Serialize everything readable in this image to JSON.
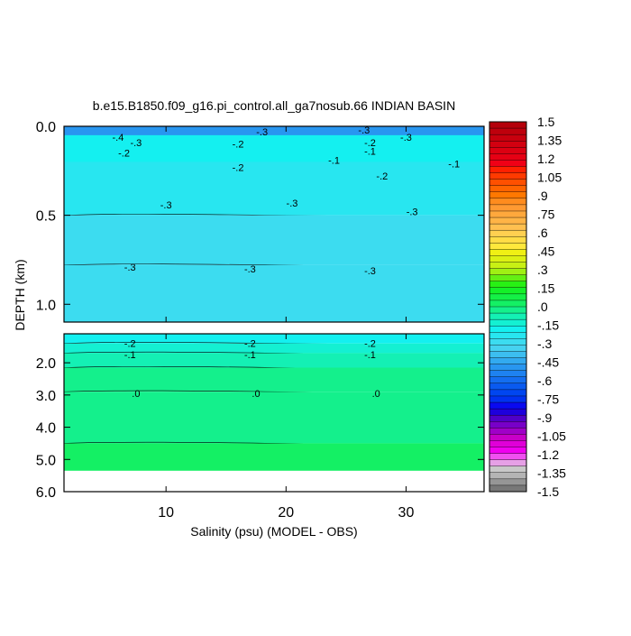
{
  "chart_data": {
    "type": "contour",
    "title": "b.e15.B1850.f09_g16.pi_control.all_ga7nosub.66 INDIAN BASIN",
    "xlabel": "Salinity (psu) (MODEL - OBS)",
    "ylabel": "DEPTH (km)",
    "x_ticks": [
      "10",
      "20",
      "30"
    ],
    "x_tick_values": [
      10,
      20,
      30
    ],
    "xlim": [
      1.5,
      36.5
    ],
    "top_panel": {
      "ylim": [
        0.0,
        1.1
      ],
      "y_ticks": [
        "0.0",
        "0.5",
        "1.0"
      ],
      "y_tick_values": [
        0.0,
        0.5,
        1.0
      ],
      "bands": [
        {
          "depth_top": 0.0,
          "depth_bottom": 0.1,
          "value": -0.5
        },
        {
          "depth_top": 0.05,
          "depth_bottom": 0.3,
          "value": -0.2
        },
        {
          "depth_top": 0.2,
          "depth_bottom": 0.5,
          "value": -0.25
        },
        {
          "depth_top": 0.5,
          "depth_bottom": 0.78,
          "value": -0.3
        },
        {
          "depth_top": 0.78,
          "depth_bottom": 1.1,
          "value": -0.3
        }
      ],
      "contour_labels": [
        {
          "x": 6,
          "depth": 0.06,
          "text": "-.4"
        },
        {
          "x": 7.5,
          "depth": 0.09,
          "text": "-.3"
        },
        {
          "x": 6.5,
          "depth": 0.15,
          "text": "-.2"
        },
        {
          "x": 16,
          "depth": 0.1,
          "text": "-.2"
        },
        {
          "x": 18,
          "depth": 0.03,
          "text": "-.3"
        },
        {
          "x": 16,
          "depth": 0.23,
          "text": "-.2"
        },
        {
          "x": 24,
          "depth": 0.19,
          "text": "-.1"
        },
        {
          "x": 26.5,
          "depth": 0.02,
          "text": "-.3"
        },
        {
          "x": 27,
          "depth": 0.09,
          "text": "-.2"
        },
        {
          "x": 27,
          "depth": 0.14,
          "text": "-.1"
        },
        {
          "x": 30,
          "depth": 0.06,
          "text": "-.3"
        },
        {
          "x": 28,
          "depth": 0.28,
          "text": "-.2"
        },
        {
          "x": 34,
          "depth": 0.21,
          "text": "-.1"
        },
        {
          "x": 10,
          "depth": 0.44,
          "text": "-.3"
        },
        {
          "x": 20.5,
          "depth": 0.43,
          "text": "-.3"
        },
        {
          "x": 30.5,
          "depth": 0.48,
          "text": "-.3"
        },
        {
          "x": 7,
          "depth": 0.79,
          "text": "-.3"
        },
        {
          "x": 17,
          "depth": 0.8,
          "text": "-.3"
        },
        {
          "x": 27,
          "depth": 0.81,
          "text": "-.3"
        }
      ]
    },
    "bottom_panel": {
      "ylim": [
        1.1,
        6.0
      ],
      "y_ticks": [
        "2.0",
        "3.0",
        "4.0",
        "5.0",
        "6.0"
      ],
      "y_tick_values": [
        2.0,
        3.0,
        4.0,
        5.0,
        6.0
      ],
      "data_bottom_depth": 5.35,
      "bands": [
        {
          "depth_top": 1.1,
          "depth_bottom": 1.4,
          "value": -0.2
        },
        {
          "depth_top": 1.4,
          "depth_bottom": 1.7,
          "value": -0.15
        },
        {
          "depth_top": 1.7,
          "depth_bottom": 2.15,
          "value": -0.1
        },
        {
          "depth_top": 2.15,
          "depth_bottom": 2.9,
          "value": -0.05
        },
        {
          "depth_top": 2.9,
          "depth_bottom": 4.5,
          "value": 0.0
        },
        {
          "depth_top": 4.5,
          "depth_bottom": 5.35,
          "value": 0.05
        }
      ],
      "contour_labels": [
        {
          "x": 7,
          "depth": 1.4,
          "text": "-.2"
        },
        {
          "x": 17,
          "depth": 1.4,
          "text": "-.2"
        },
        {
          "x": 27,
          "depth": 1.4,
          "text": "-.2"
        },
        {
          "x": 7,
          "depth": 1.75,
          "text": "-.1"
        },
        {
          "x": 17,
          "depth": 1.75,
          "text": "-.1"
        },
        {
          "x": 27,
          "depth": 1.75,
          "text": "-.1"
        },
        {
          "x": 7.5,
          "depth": 2.95,
          "text": ".0"
        },
        {
          "x": 17.5,
          "depth": 2.95,
          "text": ".0"
        },
        {
          "x": 27.5,
          "depth": 2.95,
          "text": ".0"
        }
      ]
    },
    "colorbar": {
      "range": [
        -1.5,
        1.5
      ],
      "labels": [
        "1.5",
        "1.35",
        "1.2",
        "1.05",
        ".9",
        ".75",
        ".6",
        ".45",
        ".3",
        ".15",
        ".0",
        "-.15",
        "-.3",
        "-.45",
        "-.6",
        "-.75",
        "-.9",
        "-1.05",
        "-1.2",
        "-1.35",
        "-1.5"
      ],
      "label_values": [
        1.5,
        1.35,
        1.2,
        1.05,
        0.9,
        0.75,
        0.6,
        0.45,
        0.3,
        0.15,
        0.0,
        -0.15,
        -0.3,
        -0.45,
        -0.6,
        -0.75,
        -0.9,
        -1.05,
        -1.2,
        -1.35,
        -1.5
      ],
      "colors_top_to_bottom": [
        "#b4000a",
        "#be000c",
        "#c8000e",
        "#d20010",
        "#dc0012",
        "#e60014",
        "#f00016",
        "#ff2000",
        "#ff3a00",
        "#ff5000",
        "#ff6400",
        "#ff7800",
        "#ff8c1e",
        "#ff9a32",
        "#ffa83c",
        "#ffb446",
        "#ffc050",
        "#ffd050",
        "#ffdc46",
        "#ffe83c",
        "#f0f014",
        "#dcf014",
        "#c8f014",
        "#a0f014",
        "#64f014",
        "#28f014",
        "#14f028",
        "#14f046",
        "#14f064",
        "#14f08c",
        "#14f0b4",
        "#14f0d2",
        "#14f0f0",
        "#28e6f0",
        "#3cdcf0",
        "#46d2f0",
        "#3cbef0",
        "#32aaf0",
        "#2896f0",
        "#1e82f0",
        "#146ef0",
        "#0a5af0",
        "#0046f0",
        "#0032f0",
        "#0a0af0",
        "#1e00dc",
        "#5000c8",
        "#7800c8",
        "#a000c8",
        "#c800c8",
        "#e000d8",
        "#f000f0",
        "#f050f0",
        "#e6a0e6",
        "#c8c8c8",
        "#b4b4b4",
        "#969696",
        "#787878"
      ]
    }
  }
}
